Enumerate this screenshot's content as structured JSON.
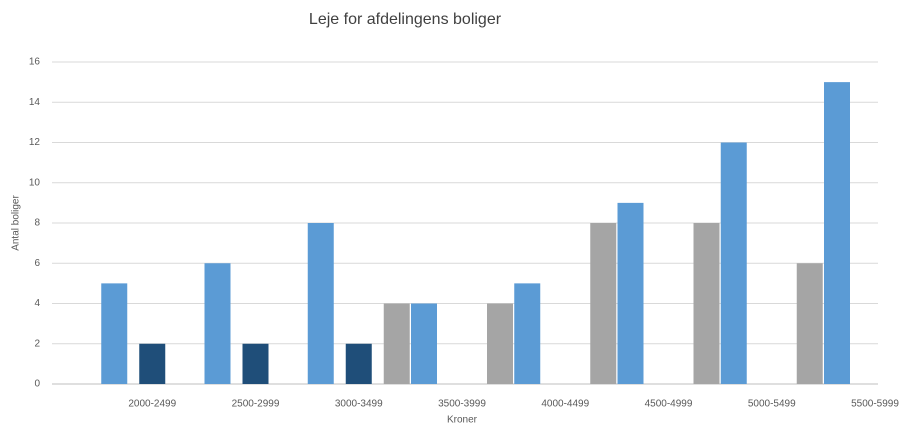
{
  "chart_data": {
    "type": "bar",
    "title": "Leje for afdelingens boliger",
    "x_label": "Kroner",
    "y_label": "Antal boliger",
    "categories": [
      "2000-2499",
      "2500-2999",
      "3000-3499",
      "3500-3999",
      "4000-4499",
      "4500-4999",
      "5000-5499",
      "5500-5999"
    ],
    "series": [
      {
        "color": "#5b9bd5",
        "values": [
          5,
          6,
          8,
          4,
          5,
          9,
          12,
          15
        ]
      },
      {
        "color": "#1f4e79",
        "values": [
          2,
          2,
          2,
          null,
          null,
          null,
          null,
          null
        ]
      },
      {
        "color": "#a5a5a5",
        "values": [
          null,
          null,
          4,
          4,
          8,
          8,
          6,
          null
        ]
      }
    ],
    "ylim": [
      0,
      16
    ],
    "yticks": [
      0,
      2,
      4,
      6,
      8,
      10,
      12,
      14,
      16
    ],
    "grid": true
  }
}
